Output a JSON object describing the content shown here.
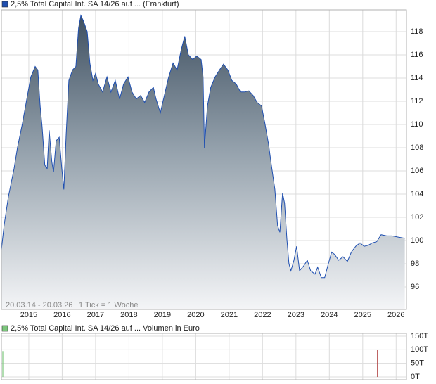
{
  "chart_data": [
    {
      "type": "area",
      "series": [
        {
          "name": "2,5% Total Capital Int. SA 14/26 auf ... (Frankfurt)",
          "color": "#1f4fb0",
          "x": [
            2014.18,
            2014.26,
            2014.39,
            2014.56,
            2014.66,
            2014.81,
            2014.94,
            2015.06,
            2015.19,
            2015.27,
            2015.34,
            2015.4,
            2015.48,
            2015.55,
            2015.61,
            2015.69,
            2015.74,
            2015.82,
            2015.91,
            2015.99,
            2016.05,
            2016.12,
            2016.2,
            2016.31,
            2016.41,
            2016.49,
            2016.56,
            2016.64,
            2016.75,
            2016.83,
            2016.92,
            2017.0,
            2017.08,
            2017.21,
            2017.34,
            2017.46,
            2017.59,
            2017.72,
            2017.84,
            2017.97,
            2018.09,
            2018.22,
            2018.35,
            2018.47,
            2018.6,
            2018.73,
            2018.81,
            2018.94,
            2019.06,
            2019.19,
            2019.32,
            2019.44,
            2019.57,
            2019.67,
            2019.78,
            2019.91,
            2020.03,
            2020.16,
            2020.22,
            2020.26,
            2020.35,
            2020.45,
            2020.58,
            2020.71,
            2020.83,
            2020.96,
            2021.08,
            2021.21,
            2021.34,
            2021.46,
            2021.59,
            2021.72,
            2021.84,
            2021.97,
            2022.07,
            2022.18,
            2022.28,
            2022.37,
            2022.45,
            2022.52,
            2022.6,
            2022.66,
            2022.73,
            2022.79,
            2022.85,
            2022.94,
            2023.02,
            2023.11,
            2023.23,
            2023.34,
            2023.44,
            2023.57,
            2023.65,
            2023.76,
            2023.86,
            2023.97,
            2024.07,
            2024.16,
            2024.28,
            2024.41,
            2024.54,
            2024.66,
            2024.79,
            2024.92,
            2025.04,
            2025.17,
            2025.29,
            2025.42,
            2025.55,
            2025.72,
            2025.88,
            2026.05,
            2026.26
          ],
          "values": [
            99.2,
            101.3,
            103.8,
            106.2,
            108,
            110.1,
            112.2,
            114.1,
            115,
            114.7,
            111.6,
            109.8,
            106.5,
            106.2,
            109.5,
            106.8,
            105.9,
            108.6,
            108.9,
            106.2,
            104.4,
            109.2,
            113.8,
            114.7,
            115,
            118.3,
            119.4,
            118.9,
            118,
            115.3,
            113.8,
            114.4,
            113.5,
            112.8,
            114.1,
            112.8,
            113.8,
            112.2,
            113.5,
            114.1,
            112.8,
            112.2,
            112.5,
            111.9,
            112.8,
            113.2,
            112.2,
            111,
            112.5,
            114.1,
            115.3,
            114.7,
            116.5,
            117.6,
            116,
            115.6,
            115.9,
            115.6,
            114.1,
            108,
            111.6,
            113.2,
            114.1,
            114.7,
            115.2,
            114.7,
            113.8,
            113.5,
            112.8,
            112.8,
            112.9,
            112.5,
            111.9,
            111.6,
            110.1,
            108.3,
            106.2,
            104.4,
            101.3,
            100.7,
            104.1,
            103.2,
            100.1,
            98,
            97.4,
            98.3,
            99.5,
            97.4,
            97.8,
            98.3,
            97.4,
            97.1,
            97.7,
            96.8,
            96.8,
            98,
            99,
            98.8,
            98.3,
            98.6,
            98.2,
            99,
            99.5,
            99.8,
            99.5,
            99.6,
            99.8,
            99.9,
            100.5,
            100.4,
            100.4,
            100.3,
            100.2
          ]
        }
      ],
      "xlim": [
        2014.18,
        2026.31
      ],
      "xticks": [
        2015,
        2016,
        2017,
        2018,
        2019,
        2020,
        2021,
        2022,
        2023,
        2024,
        2025,
        2026
      ],
      "ylim": [
        94.06,
        119.88
      ],
      "yticks": [
        96,
        98,
        100,
        102,
        104,
        106,
        108,
        110,
        112,
        114,
        116,
        118
      ],
      "grid": true,
      "date_range": "20.03.14 - 20.03.26",
      "note": "1 Tick = 1 Woche"
    },
    {
      "type": "bar",
      "series": [
        {
          "name": "2,5% Total Capital Int. SA 14/26 auf ... Volumen in Euro",
          "color": "#7cc67c",
          "x": [
            2014.22,
            2025.44
          ],
          "values": [
            95,
            100
          ],
          "colors": [
            "#7cc67c",
            "#b04040"
          ]
        }
      ],
      "xlim": [
        2014.18,
        2026.31
      ],
      "xticks": [
        2015,
        2016,
        2017,
        2018,
        2019,
        2020,
        2021,
        2022,
        2023,
        2024,
        2025,
        2026
      ],
      "ylim": [
        -10.3,
        160.3
      ],
      "yticks": [
        {
          "value": 0,
          "label": "0T"
        },
        {
          "value": 50,
          "label": "50T"
        },
        {
          "value": 100,
          "label": "100T"
        },
        {
          "value": 150,
          "label": "150T"
        }
      ],
      "grid": true
    }
  ]
}
